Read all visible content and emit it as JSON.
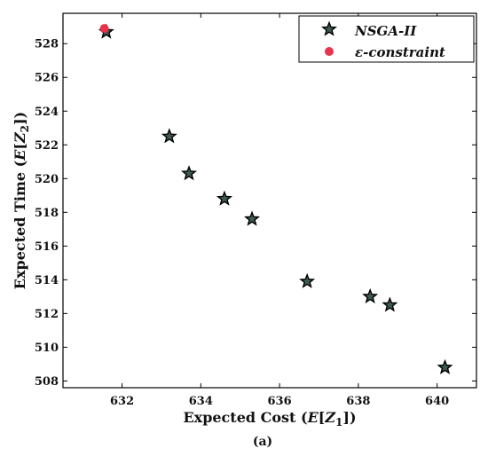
{
  "chart_data": {
    "type": "scatter",
    "xlabel": "Expected Cost (E[Z₁])",
    "xlabel_main": "Expected Cost (",
    "xlabel_sym": "E",
    "xlabel_var": "Z",
    "xlabel_sub": "1",
    "ylabel": "Expected Time (E[Z₂])",
    "ylabel_main": "Expected Time (",
    "ylabel_sym": "E",
    "ylabel_var": "Z",
    "ylabel_sub": "2",
    "xlim": [
      630.5,
      641
    ],
    "ylim": [
      507.6,
      529.8
    ],
    "xticks": [
      632,
      634,
      636,
      638,
      640
    ],
    "yticks": [
      508,
      510,
      512,
      514,
      516,
      518,
      520,
      522,
      524,
      526,
      528
    ],
    "grid": false,
    "legend_position": "top-right",
    "series": [
      {
        "name": "NSGA-II",
        "marker": "star",
        "color": "#3f5a55",
        "edge_color": "#000000",
        "points": [
          {
            "x": 631.6,
            "y": 528.7
          },
          {
            "x": 633.2,
            "y": 522.5
          },
          {
            "x": 633.7,
            "y": 520.3
          },
          {
            "x": 634.6,
            "y": 518.8
          },
          {
            "x": 635.3,
            "y": 517.6
          },
          {
            "x": 636.7,
            "y": 513.9
          },
          {
            "x": 638.3,
            "y": 513.0
          },
          {
            "x": 638.8,
            "y": 512.5
          },
          {
            "x": 640.2,
            "y": 508.8
          }
        ]
      },
      {
        "name": "ε-constraint",
        "marker": "circle",
        "color": "#e8334a",
        "points": [
          {
            "x": 631.55,
            "y": 528.9
          }
        ]
      }
    ],
    "caption": "(a)"
  }
}
